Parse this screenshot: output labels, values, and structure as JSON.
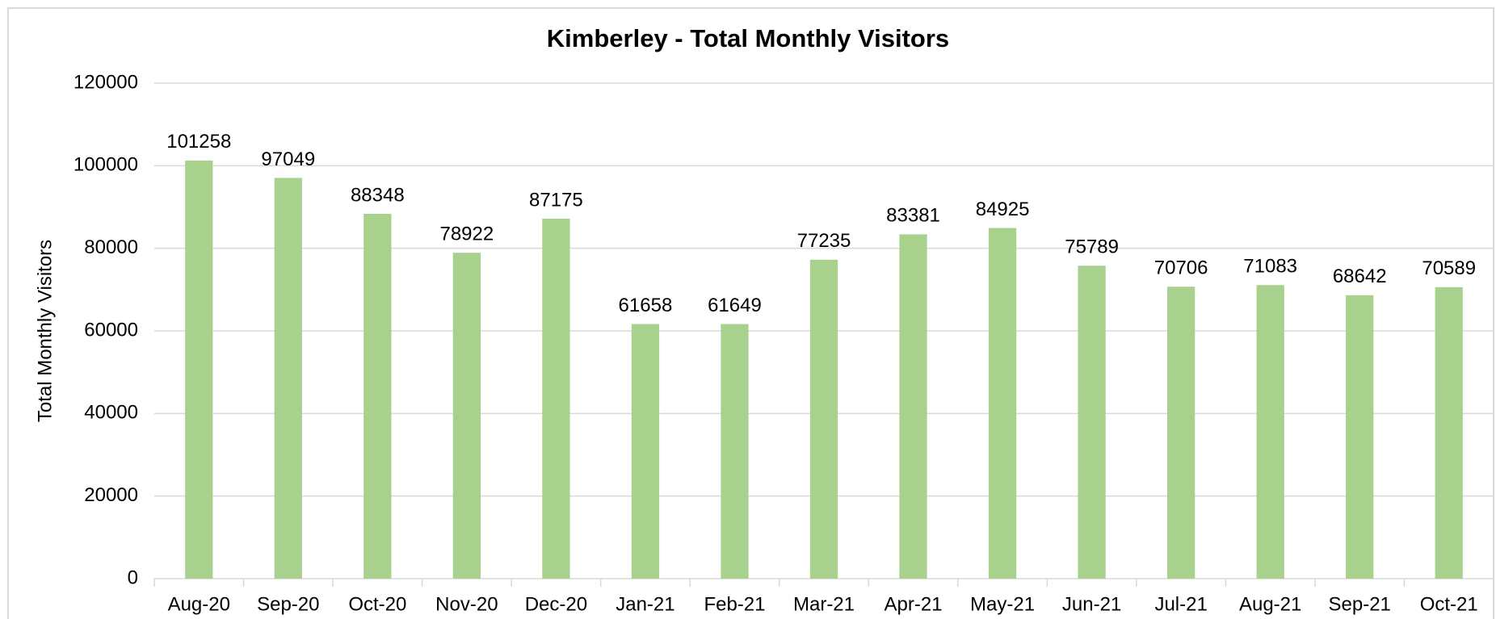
{
  "chart_data": {
    "type": "bar",
    "title": "Kimberley - Total Monthly Visitors",
    "y_label": "Total Monthly Visitors",
    "categories": [
      "Aug-20",
      "Sep-20",
      "Oct-20",
      "Nov-20",
      "Dec-20",
      "Jan-21",
      "Feb-21",
      "Mar-21",
      "Apr-21",
      "May-21",
      "Jun-21",
      "Jul-21",
      "Aug-21",
      "Sep-21",
      "Oct-21"
    ],
    "values": [
      101258,
      97049,
      88348,
      78922,
      87175,
      61658,
      61649,
      77235,
      83381,
      84925,
      75789,
      70706,
      71083,
      68642,
      70589
    ],
    "color": "#a9d18e",
    "ylim": [
      0,
      120000
    ],
    "yticks": [
      0,
      20000,
      40000,
      60000,
      80000,
      100000,
      120000
    ],
    "grid": true
  }
}
